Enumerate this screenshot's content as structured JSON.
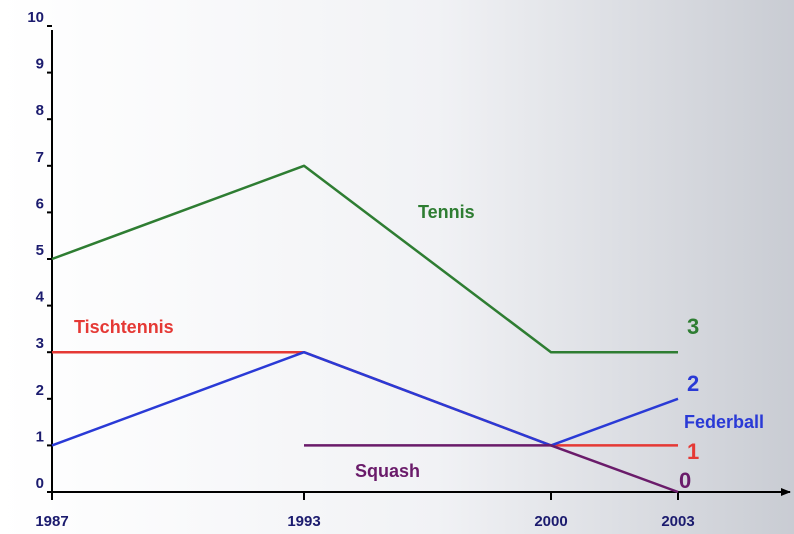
{
  "chart_data": {
    "type": "line",
    "title": "",
    "xlabel": "",
    "ylabel": "",
    "x": [
      "1987",
      "1993",
      "2000",
      "2003"
    ],
    "x_numeric": [
      1987,
      1993,
      2000,
      2003
    ],
    "ylim": [
      0,
      10
    ],
    "yticks": [
      "0",
      "1",
      "2",
      "3",
      "4",
      "5",
      "6",
      "7",
      "8",
      "9",
      "10"
    ],
    "grid": false,
    "colors": {
      "axis": "#000000",
      "tick_text": "#1b1b6e",
      "Tennis": "#2e7d32",
      "Tischtennis": "#e53935",
      "Federball": "#2a3ad6",
      "Squash": "#6a1b6a"
    },
    "series": [
      {
        "name": "Tennis",
        "x": [
          1987,
          1993,
          2000,
          2003
        ],
        "values": [
          5,
          7,
          3,
          3
        ],
        "end_label": "3"
      },
      {
        "name": "Tischtennis",
        "x": [
          1987,
          1993,
          2000,
          2003
        ],
        "values": [
          3,
          3,
          1,
          1
        ],
        "end_label": "1"
      },
      {
        "name": "Federball",
        "x": [
          1987,
          1993,
          2000,
          2003
        ],
        "values": [
          1,
          3,
          1,
          2
        ],
        "end_label": "2"
      },
      {
        "name": "Squash",
        "x": [
          1993,
          2000,
          2003
        ],
        "values": [
          1,
          1,
          0
        ],
        "end_label": "0"
      }
    ]
  }
}
